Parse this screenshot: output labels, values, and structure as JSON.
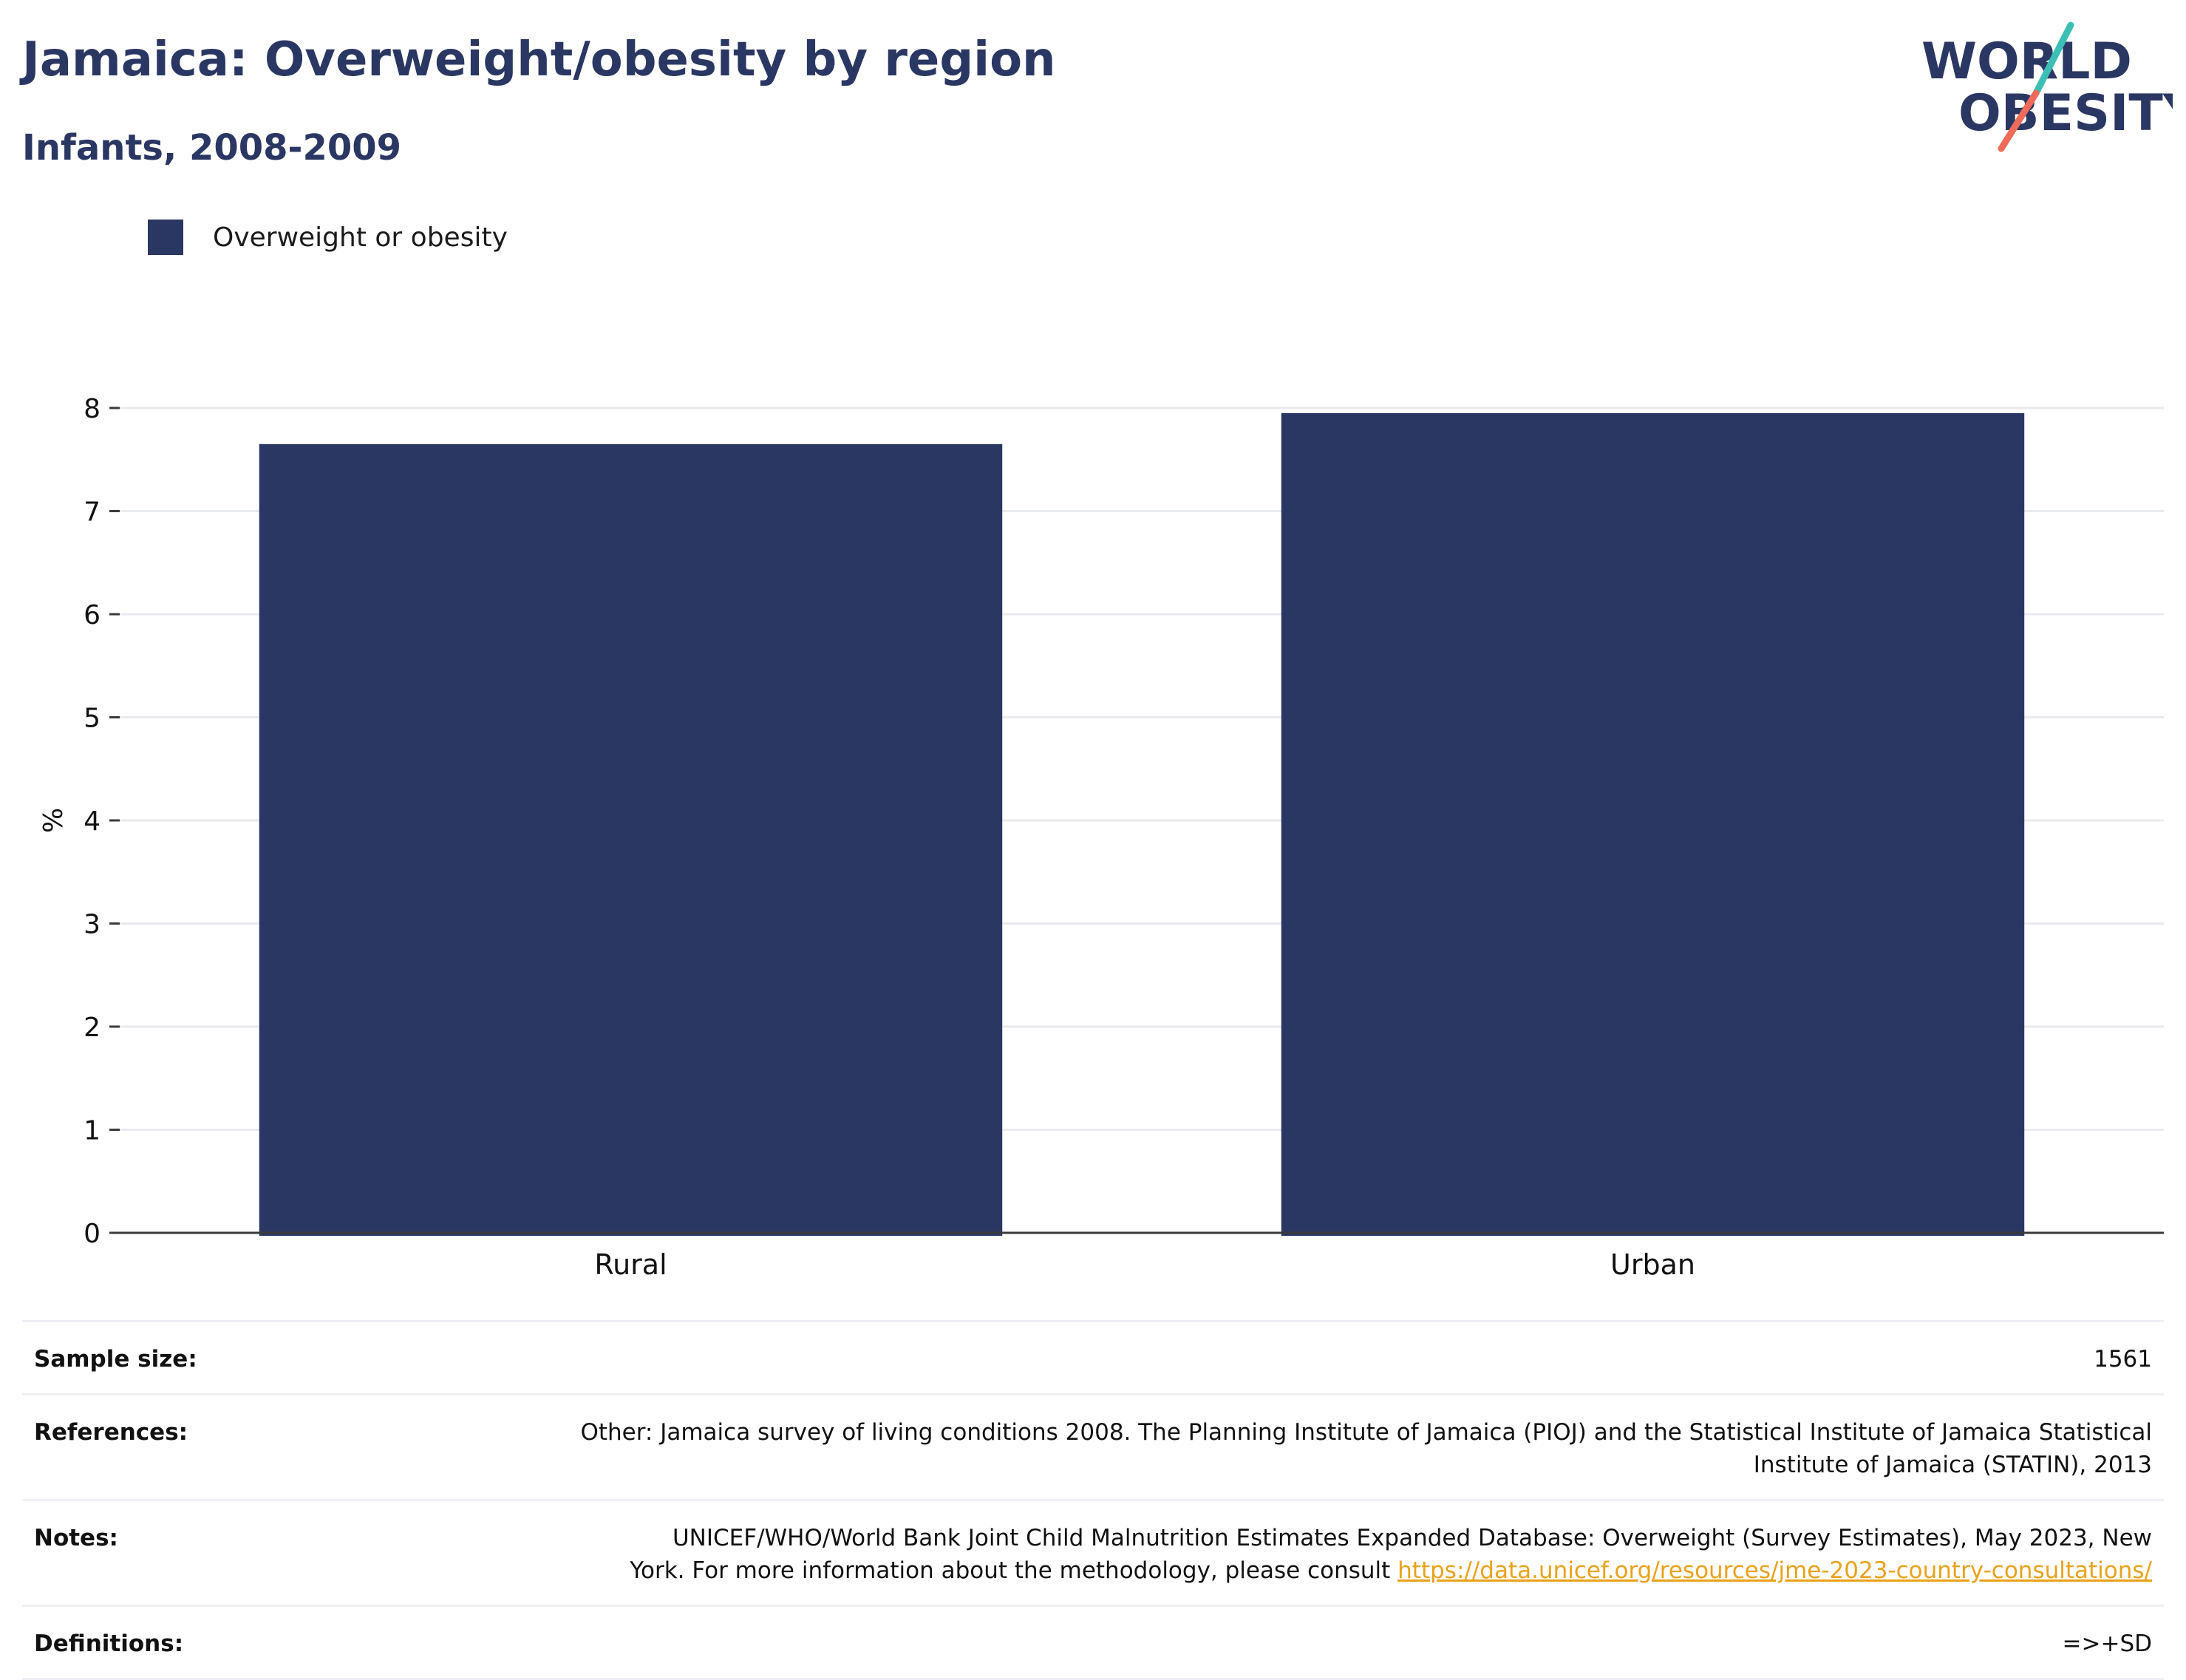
{
  "header": {
    "title": "Jamaica: Overweight/obesity by region",
    "subtitle": "Infants, 2008-2009"
  },
  "logo": {
    "line1": "WORLD",
    "line2": "OBESITY"
  },
  "colors": {
    "bar": "#2b3763",
    "title": "#2b3763",
    "grid": "#e8eaee",
    "link": "#e9a21b",
    "logo_teal": "#3bbfb5",
    "logo_coral": "#ef6b5a"
  },
  "chart_data": {
    "type": "bar",
    "categories": [
      "Rural",
      "Urban"
    ],
    "series": [
      {
        "name": "Overweight or obesity",
        "values": [
          7.65,
          7.95
        ]
      }
    ],
    "ylabel": "%",
    "xlabel": "",
    "ylim": [
      0,
      8
    ],
    "yticks": [
      0,
      1,
      2,
      3,
      4,
      5,
      6,
      7,
      8
    ],
    "grid": true,
    "legend_position": "top-left"
  },
  "meta": {
    "sample_size": {
      "label": "Sample size:",
      "value": "1561"
    },
    "references": {
      "label": "References:",
      "line1": "Other: Jamaica survey of living conditions 2008. The Planning Institute of Jamaica (PIOJ) and the Statistical Institute of Jamaica Statistical",
      "line2": "Institute of Jamaica (STATIN), 2013"
    },
    "notes": {
      "label": "Notes:",
      "line1": "UNICEF/WHO/World Bank Joint Child Malnutrition Estimates Expanded Database: Overweight (Survey Estimates), May 2023, New",
      "line2": "York. For more information about the methodology, please consult ",
      "link": "https://data.unicef.org/resources/jme-2023-country-consultations/"
    },
    "definitions": {
      "label": "Definitions:",
      "value": "=>+SD"
    }
  }
}
